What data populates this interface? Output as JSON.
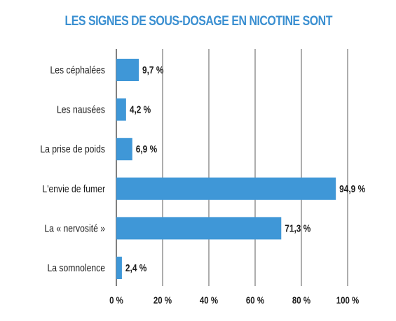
{
  "colors": {
    "title": "#3a8fd1",
    "bar": "#3f97d7",
    "grid": "#4a4a4a",
    "text": "#1a1a1a"
  },
  "chart_data": {
    "type": "bar",
    "orientation": "horizontal",
    "title": "LES SIGNES DE SOUS-DOSAGE EN NICOTINE SONT",
    "xlabel": "",
    "ylabel": "",
    "xlim": [
      0,
      100
    ],
    "grid": true,
    "categories": [
      "Les céphalées",
      "Les nausées",
      "La prise de poids",
      "L'envie de fumer",
      "La « nervosité »",
      "La somnolence"
    ],
    "values": [
      9.7,
      4.2,
      6.9,
      94.9,
      71.3,
      2.4
    ],
    "value_labels": [
      "9,7 %",
      "4,2 %",
      "6,9 %",
      "94,9 %",
      "71,3 %",
      "2,4 %"
    ],
    "ticks": [
      0,
      20,
      40,
      60,
      80,
      100
    ],
    "tick_labels": [
      "0 %",
      "20 %",
      "40 %",
      "60 %",
      "80 %",
      "100 %"
    ]
  }
}
